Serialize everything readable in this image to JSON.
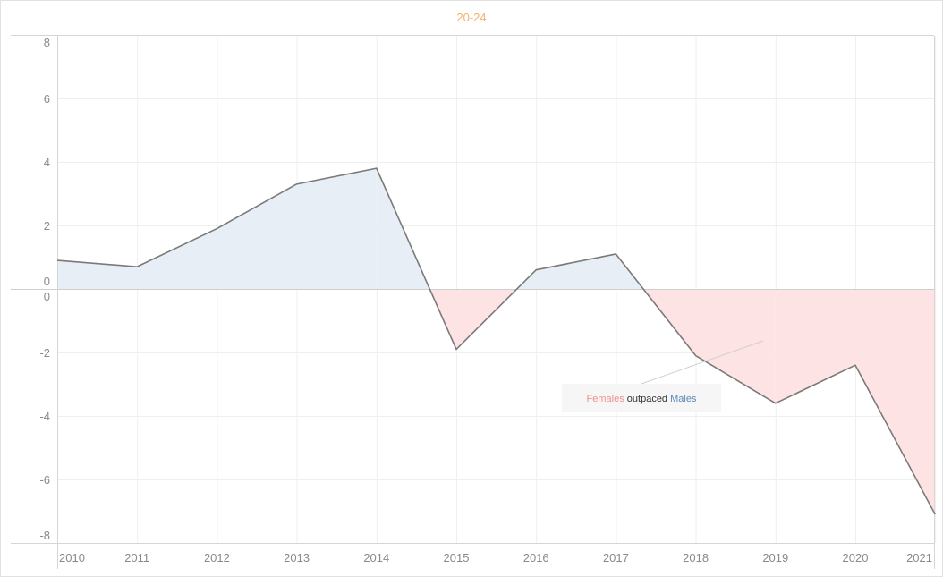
{
  "chart_data": {
    "type": "area",
    "title": "20-24",
    "x": [
      "2010",
      "2011",
      "2012",
      "2013",
      "2014",
      "2015",
      "2016",
      "2017",
      "2018",
      "2019",
      "2020",
      "2021"
    ],
    "values": [
      0.9,
      0.7,
      1.9,
      3.3,
      3.8,
      -1.9,
      0.6,
      1.1,
      -2.1,
      -3.6,
      -2.4,
      -7.1
    ],
    "ylim": [
      -8,
      8
    ],
    "y_ticks": [
      "8",
      "6",
      "4",
      "2",
      "0",
      "0",
      "-2",
      "-4",
      "-6",
      "-8"
    ],
    "grid": true,
    "annotation": {
      "parts": [
        "Females",
        " outpaced ",
        "Males"
      ]
    }
  },
  "colors": {
    "title": "#f5b06c",
    "line": "#7a7a7a",
    "positive_fill": "#e7eef5",
    "negative_fill": "#fde3e3",
    "females": "#f28e8e",
    "males": "#5f89b8",
    "grid": "#efefef",
    "axis": "#d6d6d6"
  }
}
